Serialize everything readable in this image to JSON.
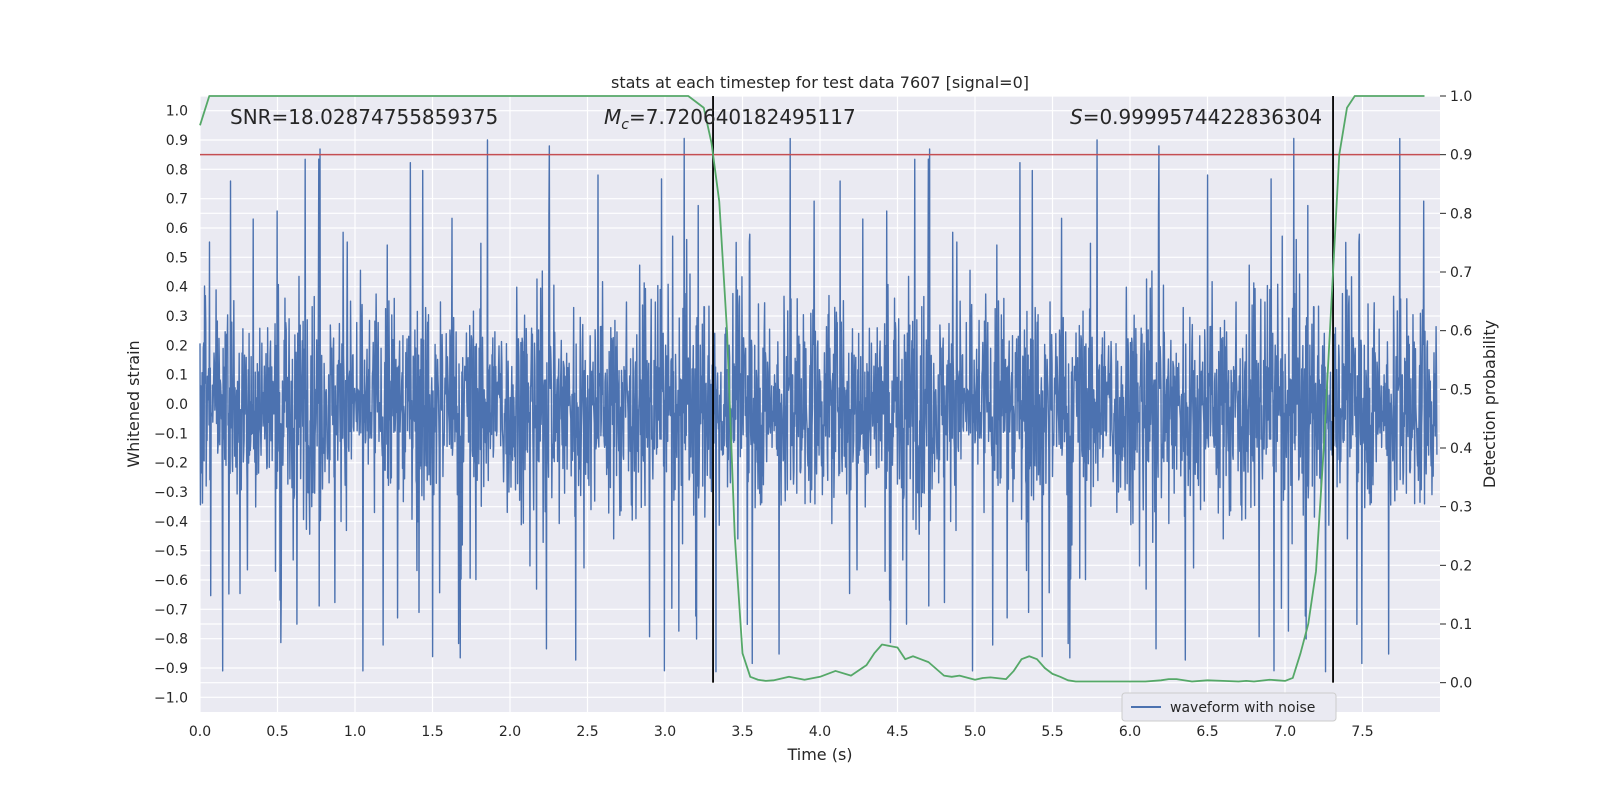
{
  "chart_data": {
    "type": "line",
    "title": "stats at each timestep for test data 7607 [signal=0]",
    "xlabel": "Time (s)",
    "ylabel": "Whitened strain",
    "y2label": "Detection probability",
    "xlim": [
      0.0,
      8.0
    ],
    "ylim": [
      -1.05,
      1.05
    ],
    "y2lim": [
      -0.05,
      1.0
    ],
    "xticks": [
      "0.0",
      "0.5",
      "1.0",
      "1.5",
      "2.0",
      "2.5",
      "3.0",
      "3.5",
      "4.0",
      "4.5",
      "5.0",
      "5.5",
      "6.0",
      "6.5",
      "7.0",
      "7.5"
    ],
    "yticks": [
      "1.0",
      "0.9",
      "0.8",
      "0.7",
      "0.6",
      "0.5",
      "0.4",
      "0.3",
      "0.2",
      "0.1",
      "0.0",
      "−0.1",
      "−0.2",
      "−0.3",
      "−0.4",
      "−0.5",
      "−0.6",
      "−0.7",
      "−0.8",
      "−0.9",
      "−1.0"
    ],
    "y2ticks": [
      "1.0",
      "0.9",
      "0.8",
      "0.7",
      "0.6",
      "0.5",
      "0.4",
      "0.3",
      "0.2",
      "0.1",
      "0.0"
    ],
    "grid": true,
    "legend": {
      "position": "bottom-right",
      "entries": [
        "waveform with noise"
      ]
    },
    "annotations": {
      "snr": "SNR=18.02874755859375",
      "mc_symbol": "M",
      "mc_sub": "c",
      "mc_value": "=7.720640182495117",
      "s_symbol": "S",
      "s_value": "=0.9999574422836304"
    },
    "threshold_y2": 0.9,
    "vlines_x": [
      3.31,
      7.31
    ],
    "series": [
      {
        "name": "waveform with noise",
        "color": "#4c72b0",
        "note": "dense whitened-strain noise, mostly within ±0.55 with spikes to about +1.0 and -0.95"
      },
      {
        "color": "#55a868",
        "x": [
          0.0,
          0.06,
          0.1,
          0.2,
          0.3,
          0.4,
          0.5,
          0.6,
          0.7,
          0.8,
          0.9,
          1.0,
          1.1,
          1.2,
          1.3,
          1.4,
          1.5,
          1.6,
          1.7,
          1.8,
          1.9,
          2.0,
          2.1,
          2.2,
          2.3,
          2.4,
          2.5,
          2.6,
          2.7,
          2.8,
          2.9,
          3.0,
          3.1,
          3.15,
          3.2,
          3.25,
          3.3,
          3.35,
          3.4,
          3.45,
          3.5,
          3.55,
          3.6,
          3.65,
          3.7,
          3.8,
          3.9,
          4.0,
          4.1,
          4.2,
          4.3,
          4.35,
          4.4,
          4.5,
          4.55,
          4.6,
          4.65,
          4.7,
          4.8,
          4.85,
          4.9,
          5.0,
          5.05,
          5.1,
          5.2,
          5.25,
          5.3,
          5.35,
          5.4,
          5.45,
          5.5,
          5.55,
          5.6,
          5.65,
          5.7,
          5.8,
          5.9,
          6.0,
          6.1,
          6.2,
          6.25,
          6.3,
          6.4,
          6.5,
          6.6,
          6.7,
          6.75,
          6.8,
          6.9,
          6.95,
          7.0,
          7.05,
          7.1,
          7.15,
          7.2,
          7.25,
          7.3,
          7.35,
          7.4,
          7.45,
          7.5,
          7.6,
          7.7,
          7.8,
          7.9
        ],
        "y": [
          0.95,
          1.0,
          1.0,
          1.0,
          1.0,
          1.0,
          1.0,
          1.0,
          1.0,
          1.0,
          1.0,
          1.0,
          1.0,
          1.0,
          1.0,
          1.0,
          1.0,
          1.0,
          1.0,
          1.0,
          1.0,
          1.0,
          1.0,
          1.0,
          1.0,
          1.0,
          1.0,
          1.0,
          1.0,
          1.0,
          1.0,
          1.0,
          1.0,
          1.0,
          0.99,
          0.98,
          0.92,
          0.82,
          0.6,
          0.25,
          0.05,
          0.01,
          0.005,
          0.003,
          0.004,
          0.01,
          0.005,
          0.01,
          0.02,
          0.012,
          0.03,
          0.05,
          0.065,
          0.06,
          0.04,
          0.045,
          0.04,
          0.035,
          0.012,
          0.01,
          0.012,
          0.005,
          0.008,
          0.009,
          0.006,
          0.02,
          0.04,
          0.045,
          0.04,
          0.025,
          0.015,
          0.01,
          0.004,
          0.002,
          0.002,
          0.002,
          0.002,
          0.002,
          0.002,
          0.004,
          0.006,
          0.006,
          0.002,
          0.004,
          0.003,
          0.002,
          0.003,
          0.002,
          0.005,
          0.004,
          0.003,
          0.008,
          0.05,
          0.1,
          0.19,
          0.4,
          0.65,
          0.9,
          0.98,
          1.0,
          1.0,
          1.0,
          1.0,
          1.0,
          1.0
        ]
      }
    ]
  }
}
